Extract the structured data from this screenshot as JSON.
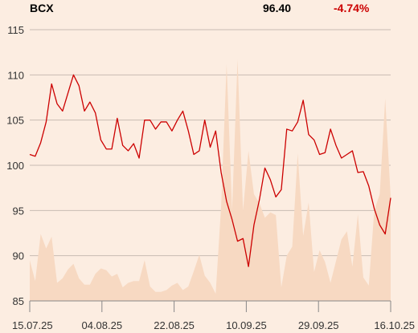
{
  "header": {
    "symbol": "BCX",
    "price": "96.40",
    "change": "-4.74%"
  },
  "colors": {
    "background": "#fcede1",
    "line": "#cc0000",
    "volume_fill": "#f7d9c2",
    "grid": "#c8bcb2",
    "change_negative": "#cc0000"
  },
  "chart_data": {
    "type": "line",
    "title": "",
    "xlabel": "",
    "ylabel": "",
    "ylim": [
      85,
      115
    ],
    "y_ticks": [
      85,
      90,
      95,
      100,
      105,
      110,
      115
    ],
    "x_tick_labels": [
      "15.07.25",
      "04.08.25",
      "22.08.25",
      "10.09.25",
      "29.09.25",
      "16.10.25"
    ],
    "grid": true,
    "series": [
      {
        "type": "line",
        "values": [
          101.2,
          101.0,
          102.5,
          104.8,
          109.0,
          106.8,
          106.0,
          108.0,
          110.0,
          108.8,
          106.0,
          107.0,
          105.8,
          102.8,
          101.8,
          101.8,
          105.2,
          102.2,
          101.6,
          102.4,
          100.8,
          105.0,
          105.0,
          104.0,
          104.8,
          104.8,
          103.8,
          105.0,
          106.0,
          103.8,
          101.2,
          101.6,
          105.0,
          102.0,
          103.8,
          99.2,
          96.0,
          94.0,
          91.6,
          91.9,
          88.8,
          93.4,
          96.2,
          99.7,
          98.4,
          96.5,
          97.3,
          104.0,
          103.8,
          104.8,
          107.2,
          103.4,
          102.8,
          101.2,
          101.4,
          104.0,
          102.2,
          100.8,
          101.2,
          101.6,
          99.2,
          99.3,
          97.7,
          95.2,
          93.4,
          92.4,
          96.4
        ]
      },
      {
        "type": "area",
        "values": [
          89.5,
          87.2,
          92.4,
          90.8,
          92.1,
          87.0,
          87.5,
          88.5,
          89.1,
          87.5,
          86.8,
          86.8,
          88.0,
          88.6,
          88.4,
          87.7,
          88.0,
          86.5,
          87.0,
          87.2,
          87.2,
          89.5,
          86.6,
          86.0,
          86.0,
          86.2,
          86.7,
          87.0,
          86.2,
          86.6,
          88.3,
          90.1,
          87.8,
          87.0,
          85.8,
          95.5,
          111.2,
          95.0,
          111.7,
          95.0,
          101.6,
          96.8,
          95.8,
          94.2,
          94.8,
          94.5,
          86.5,
          90.0,
          91.0,
          101.3,
          92.2,
          95.9,
          88.2,
          90.6,
          89.3,
          87.0,
          89.4,
          91.8,
          92.7,
          88.8,
          94.6,
          87.6,
          86.7,
          95.0,
          96.8,
          107.4,
          96.5
        ]
      }
    ]
  }
}
